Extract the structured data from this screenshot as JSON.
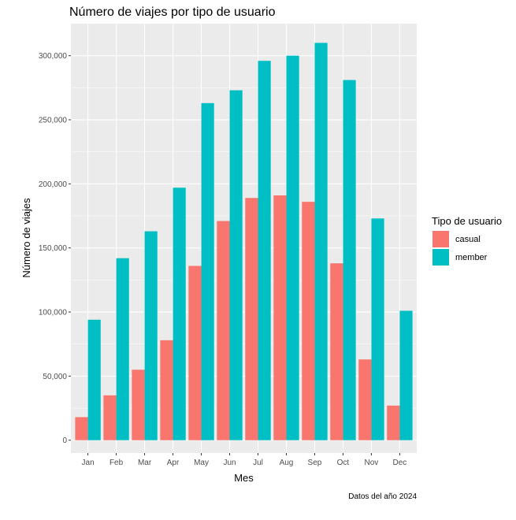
{
  "chart_data": {
    "type": "bar",
    "title": "Número de viajes por tipo de usuario",
    "xlabel": "Mes",
    "ylabel": "Número de viajes",
    "caption": "Datos del año 2024",
    "categories": [
      "Jan",
      "Feb",
      "Mar",
      "Apr",
      "May",
      "Jun",
      "Jul",
      "Aug",
      "Sep",
      "Oct",
      "Nov",
      "Dec"
    ],
    "series": [
      {
        "name": "casual",
        "color": "#F8766D",
        "values": [
          18000,
          35000,
          55000,
          78000,
          136000,
          171000,
          189000,
          191000,
          186000,
          138000,
          63000,
          27000
        ]
      },
      {
        "name": "member",
        "color": "#00BFC4",
        "values": [
          94000,
          142000,
          163000,
          197000,
          263000,
          273000,
          296000,
          300000,
          310000,
          281000,
          173000,
          101000
        ]
      }
    ],
    "ylim": [
      -10000,
      325000
    ],
    "yticks": [
      0,
      50000,
      100000,
      150000,
      200000,
      250000,
      300000
    ],
    "ytick_labels": [
      "0",
      "50,000",
      "100,000",
      "150,000",
      "200,000",
      "250,000",
      "300,000"
    ],
    "grid": true,
    "legend": {
      "title": "Tipo de usuario",
      "position": "right"
    }
  }
}
